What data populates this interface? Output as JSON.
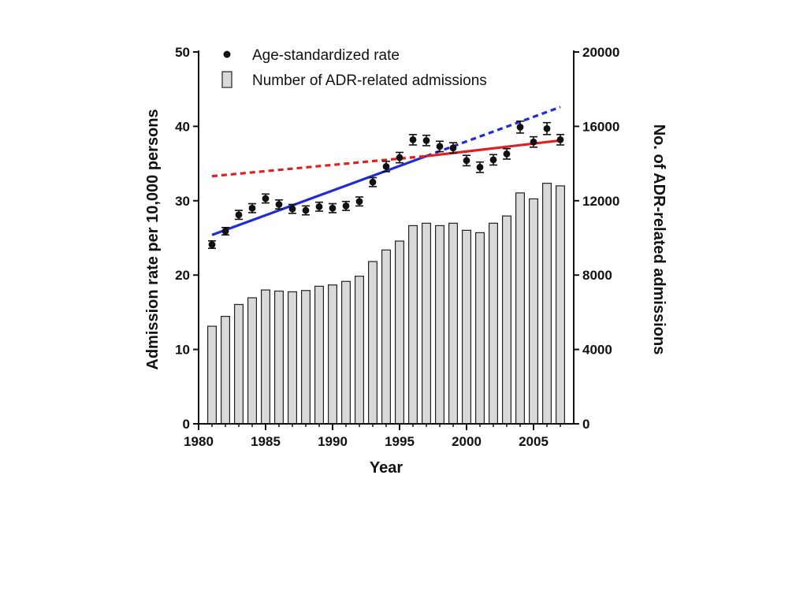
{
  "chart_data": {
    "type": "bar",
    "x": [
      1981,
      1982,
      1983,
      1984,
      1985,
      1986,
      1987,
      1988,
      1989,
      1990,
      1991,
      1992,
      1993,
      1994,
      1995,
      1996,
      1997,
      1998,
      1999,
      2000,
      2001,
      2002,
      2003,
      2004,
      2005,
      2006,
      2007
    ],
    "series": [
      {
        "name": "Number of ADR-related admissions",
        "axis": "right",
        "values": [
          5250,
          5780,
          6420,
          6780,
          7200,
          7140,
          7100,
          7170,
          7400,
          7470,
          7660,
          7940,
          8730,
          9350,
          9830,
          10660,
          10790,
          10660,
          10790,
          10410,
          10280,
          10790,
          11180,
          12420,
          12100,
          12940,
          12800
        ]
      },
      {
        "name": "Age-standardized rate",
        "axis": "left",
        "values": [
          24.1,
          25.9,
          28.1,
          29.0,
          30.3,
          29.5,
          28.9,
          28.7,
          29.2,
          29.0,
          29.3,
          29.9,
          32.5,
          34.6,
          35.8,
          38.2,
          38.1,
          37.3,
          37.1,
          35.4,
          34.5,
          35.5,
          36.3,
          39.9,
          37.9,
          39.7,
          38.2
        ],
        "errors": [
          0.5,
          0.5,
          0.6,
          0.6,
          0.6,
          0.6,
          0.6,
          0.6,
          0.6,
          0.6,
          0.6,
          0.6,
          0.6,
          0.7,
          0.7,
          0.7,
          0.7,
          0.7,
          0.7,
          0.7,
          0.7,
          0.7,
          0.7,
          0.8,
          0.7,
          0.8,
          0.7
        ]
      }
    ],
    "trend_lines": [
      {
        "style": "solid",
        "color": "#1f2bd6",
        "points": [
          [
            1981,
            25.4
          ],
          [
            1997,
            36.0
          ]
        ]
      },
      {
        "style": "dashed",
        "color": "#1f2bd6",
        "points": [
          [
            1997,
            36.0
          ],
          [
            2007,
            42.6
          ]
        ]
      },
      {
        "style": "dashed",
        "color": "#e02020",
        "points": [
          [
            1981,
            33.3
          ],
          [
            1997,
            36.0
          ]
        ]
      },
      {
        "style": "solid",
        "color": "#e02020",
        "points": [
          [
            1997,
            36.0
          ],
          [
            2007,
            38.1
          ]
        ]
      }
    ],
    "xlabel": "Year",
    "ylabel_left": "Admission rate per 10,000 persons",
    "ylabel_right": "No. of ADR-related admissions",
    "xlim": [
      1980,
      2008
    ],
    "ylim_left": [
      0,
      50
    ],
    "ylim_right": [
      0,
      20000
    ],
    "x_ticks": [
      1980,
      1985,
      1990,
      1995,
      2000,
      2005
    ],
    "y_ticks_left": [
      0,
      10,
      20,
      30,
      40,
      50
    ],
    "y_ticks_right": [
      0,
      4000,
      8000,
      12000,
      16000,
      20000
    ],
    "grid": false,
    "legend_position": "top-left",
    "bar_color": "#d9d9d9",
    "marker_color": "#111111"
  }
}
